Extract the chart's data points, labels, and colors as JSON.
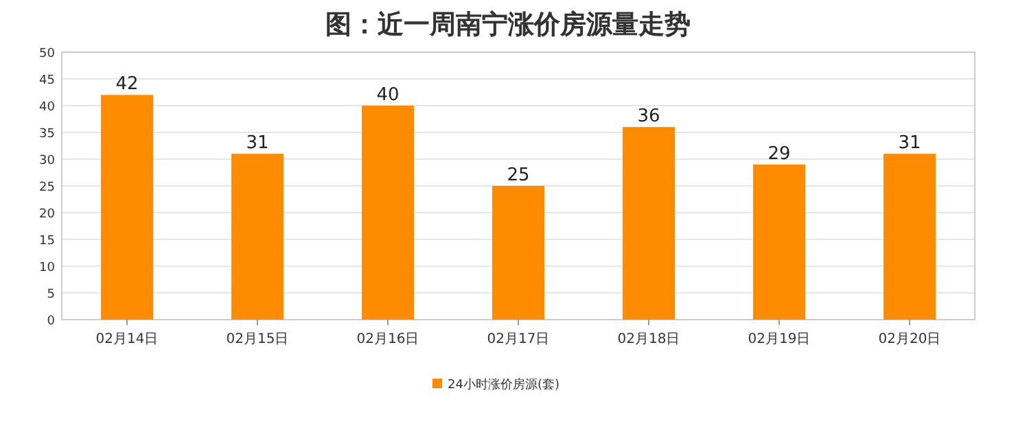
{
  "chart_data": {
    "type": "bar",
    "title": "图：近一周南宁涨价房源量走势",
    "categories": [
      "02月14日",
      "02月15日",
      "02月16日",
      "02月17日",
      "02月18日",
      "02月19日",
      "02月20日"
    ],
    "series": [
      {
        "name": "24小时涨价房源(套)",
        "color": "#ff8c00",
        "values": [
          42,
          31,
          40,
          25,
          36,
          29,
          31
        ]
      }
    ],
    "ylim": [
      0,
      50
    ],
    "yticks": [
      0,
      5,
      10,
      15,
      20,
      25,
      30,
      35,
      40,
      45,
      50
    ],
    "grid": "y",
    "legend": "bottom",
    "data_labels": true
  }
}
